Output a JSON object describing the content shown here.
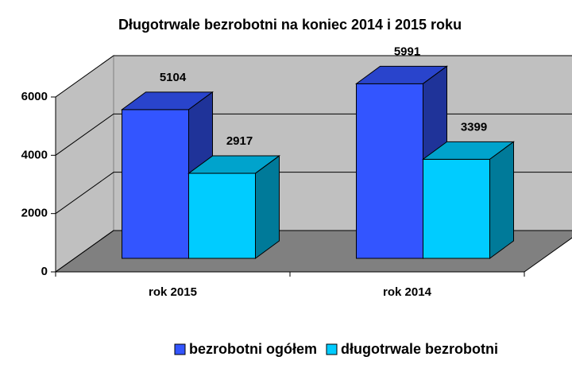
{
  "chart_data": {
    "type": "bar3d",
    "title": "Długotrwale bezrobotni na koniec 2014 i 2015 roku",
    "categories": [
      "rok 2015",
      "rok 2014"
    ],
    "series": [
      {
        "name": "bezrobotni ogółem",
        "color": "#3355ff",
        "values": [
          5104,
          5991
        ]
      },
      {
        "name": "długotrwale bezrobotni",
        "color": "#00ccff",
        "values": [
          2917,
          3399
        ]
      }
    ],
    "ylim": [
      0,
      6000
    ],
    "yticks": [
      0,
      2000,
      4000,
      6000
    ],
    "grid": true,
    "legend": "bottom"
  }
}
